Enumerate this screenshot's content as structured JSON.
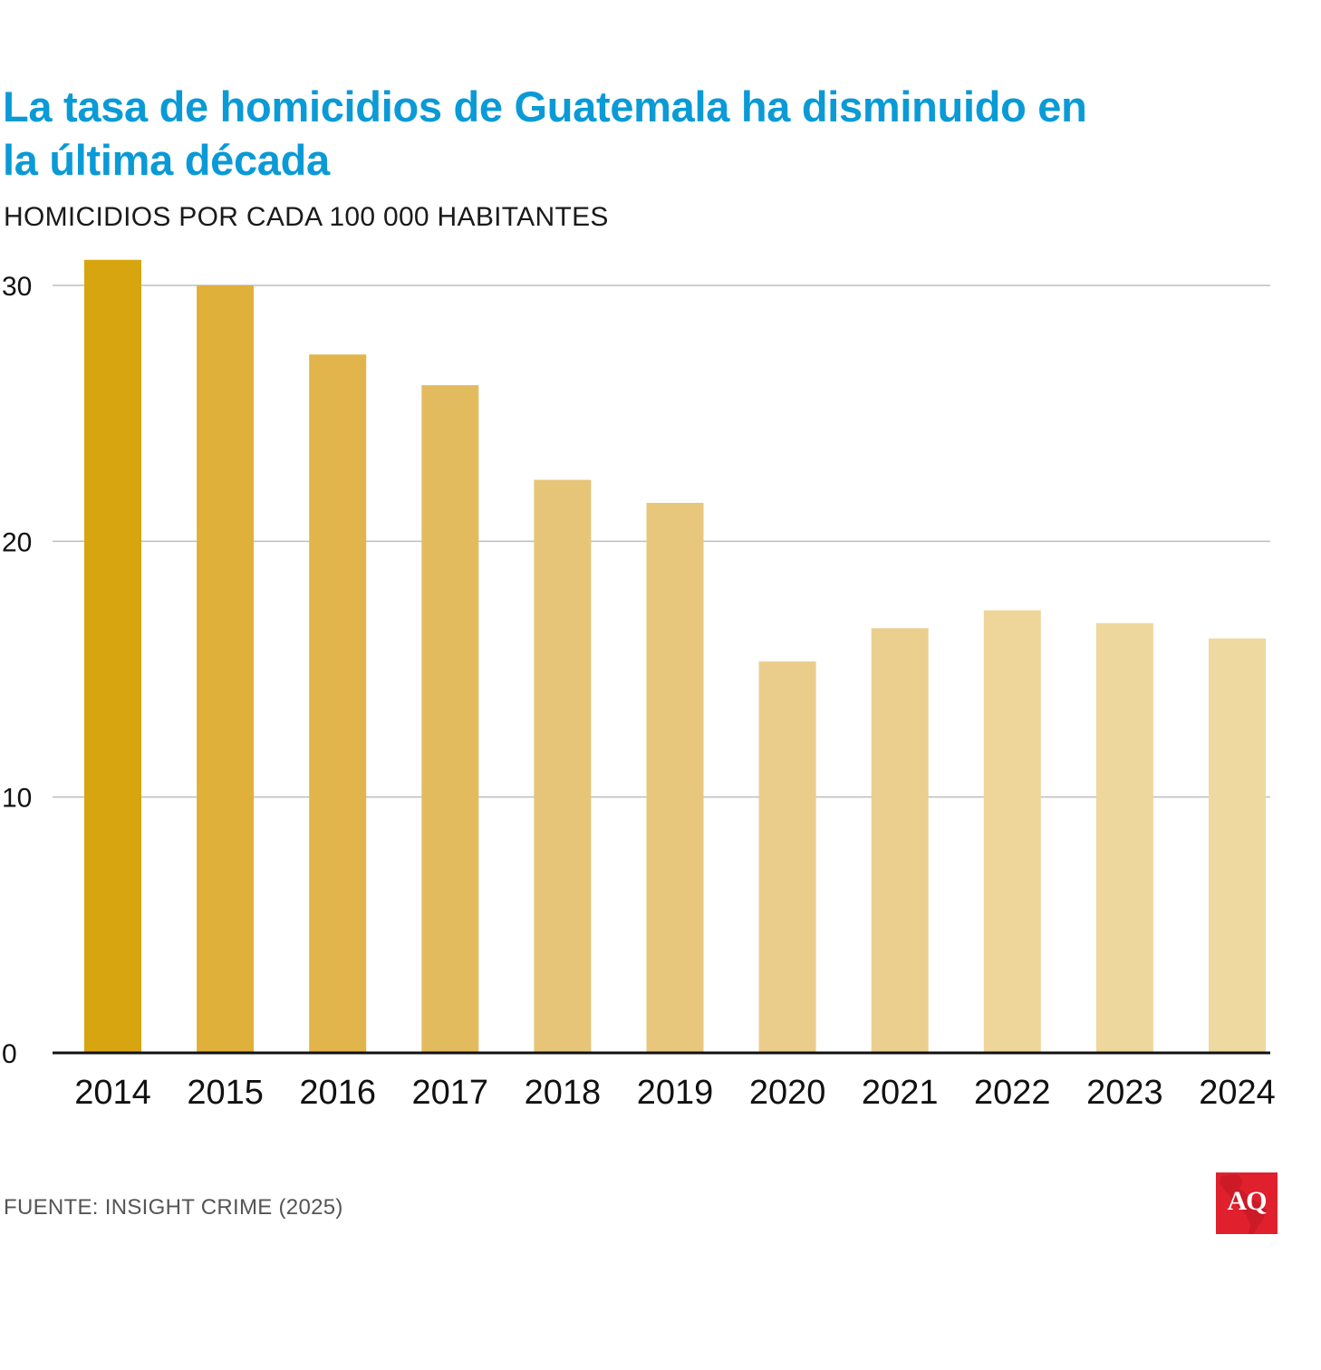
{
  "header": {
    "title": "La tasa de homicidios de Guatemala ha disminuido en la última década",
    "subtitle": "HOMICIDIOS POR CADA 100 000 HABITANTES"
  },
  "chart_data": {
    "type": "bar",
    "title": "La tasa de homicidios de Guatemala ha disminuido en la última década",
    "subtitle": "HOMICIDIOS POR CADA 100 000 HABITANTES",
    "xlabel": "",
    "ylabel": "",
    "categories": [
      "2014",
      "2015",
      "2016",
      "2017",
      "2018",
      "2019",
      "2020",
      "2021",
      "2022",
      "2023",
      "2024"
    ],
    "values": [
      31.0,
      30.0,
      27.3,
      26.1,
      22.4,
      21.5,
      15.3,
      16.6,
      17.3,
      16.8,
      16.2
    ],
    "ylim": [
      0,
      30
    ],
    "yticks": [
      "0",
      "10",
      "20",
      "30"
    ],
    "grid": true,
    "bar_colors": [
      "#d7a50f",
      "#dfb03a",
      "#e1b54b",
      "#e3bb5f",
      "#e6c579",
      "#e7c77c",
      "#eacc8b",
      "#ebcf8e",
      "#eed599",
      "#eed79d",
      "#eed9a0"
    ]
  },
  "footer": {
    "source": "FUENTE: INSIGHT CRIME (2025)",
    "logo_text": "AQ",
    "logo_color": "#e0202d"
  }
}
